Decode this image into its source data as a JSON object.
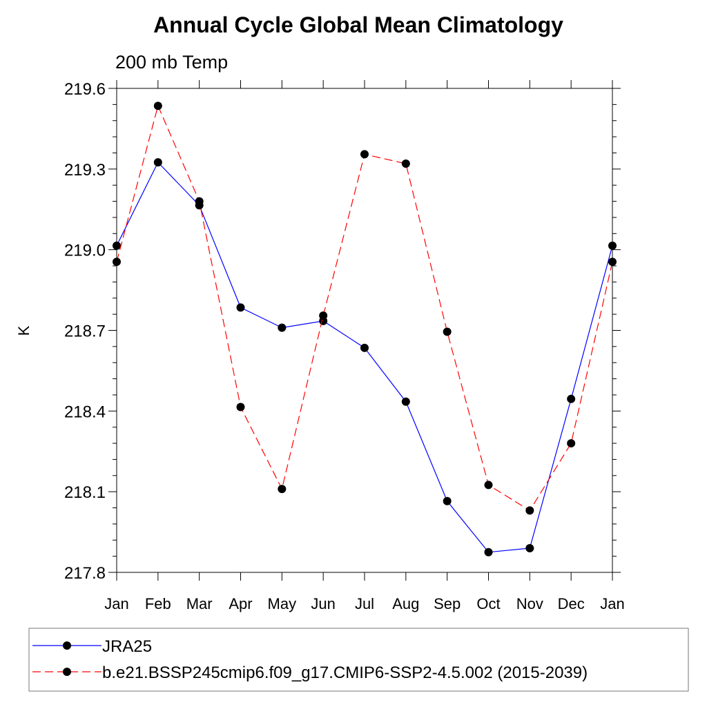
{
  "chart_data": {
    "type": "line",
    "title": "Annual Cycle Global Mean Climatology",
    "subtitle": "200 mb Temp",
    "xlabel": "",
    "ylabel": "K",
    "categories": [
      "Jan",
      "Feb",
      "Mar",
      "Apr",
      "May",
      "Jun",
      "Jul",
      "Aug",
      "Sep",
      "Oct",
      "Nov",
      "Dec",
      "Jan"
    ],
    "ylim": [
      217.8,
      219.6
    ],
    "yticks": [
      "217.8",
      "218.1",
      "218.4",
      "218.7",
      "219.0",
      "219.3",
      "219.6"
    ],
    "series": [
      {
        "name": "JRA25",
        "color": "#0000ff",
        "dash": "solid",
        "values": [
          219.015,
          219.325,
          219.165,
          218.785,
          218.71,
          218.735,
          218.635,
          218.435,
          218.065,
          217.875,
          217.89,
          218.445,
          219.015
        ]
      },
      {
        "name": "b.e21.BSSP245cmip6.f09_g17.CMIP6-SSP2-4.5.002 (2015-2039)",
        "color": "#ff0000",
        "dash": "dashed",
        "values": [
          218.955,
          219.535,
          219.18,
          218.415,
          218.11,
          218.755,
          219.355,
          219.32,
          218.695,
          218.125,
          218.03,
          218.28,
          218.955
        ]
      }
    ]
  }
}
